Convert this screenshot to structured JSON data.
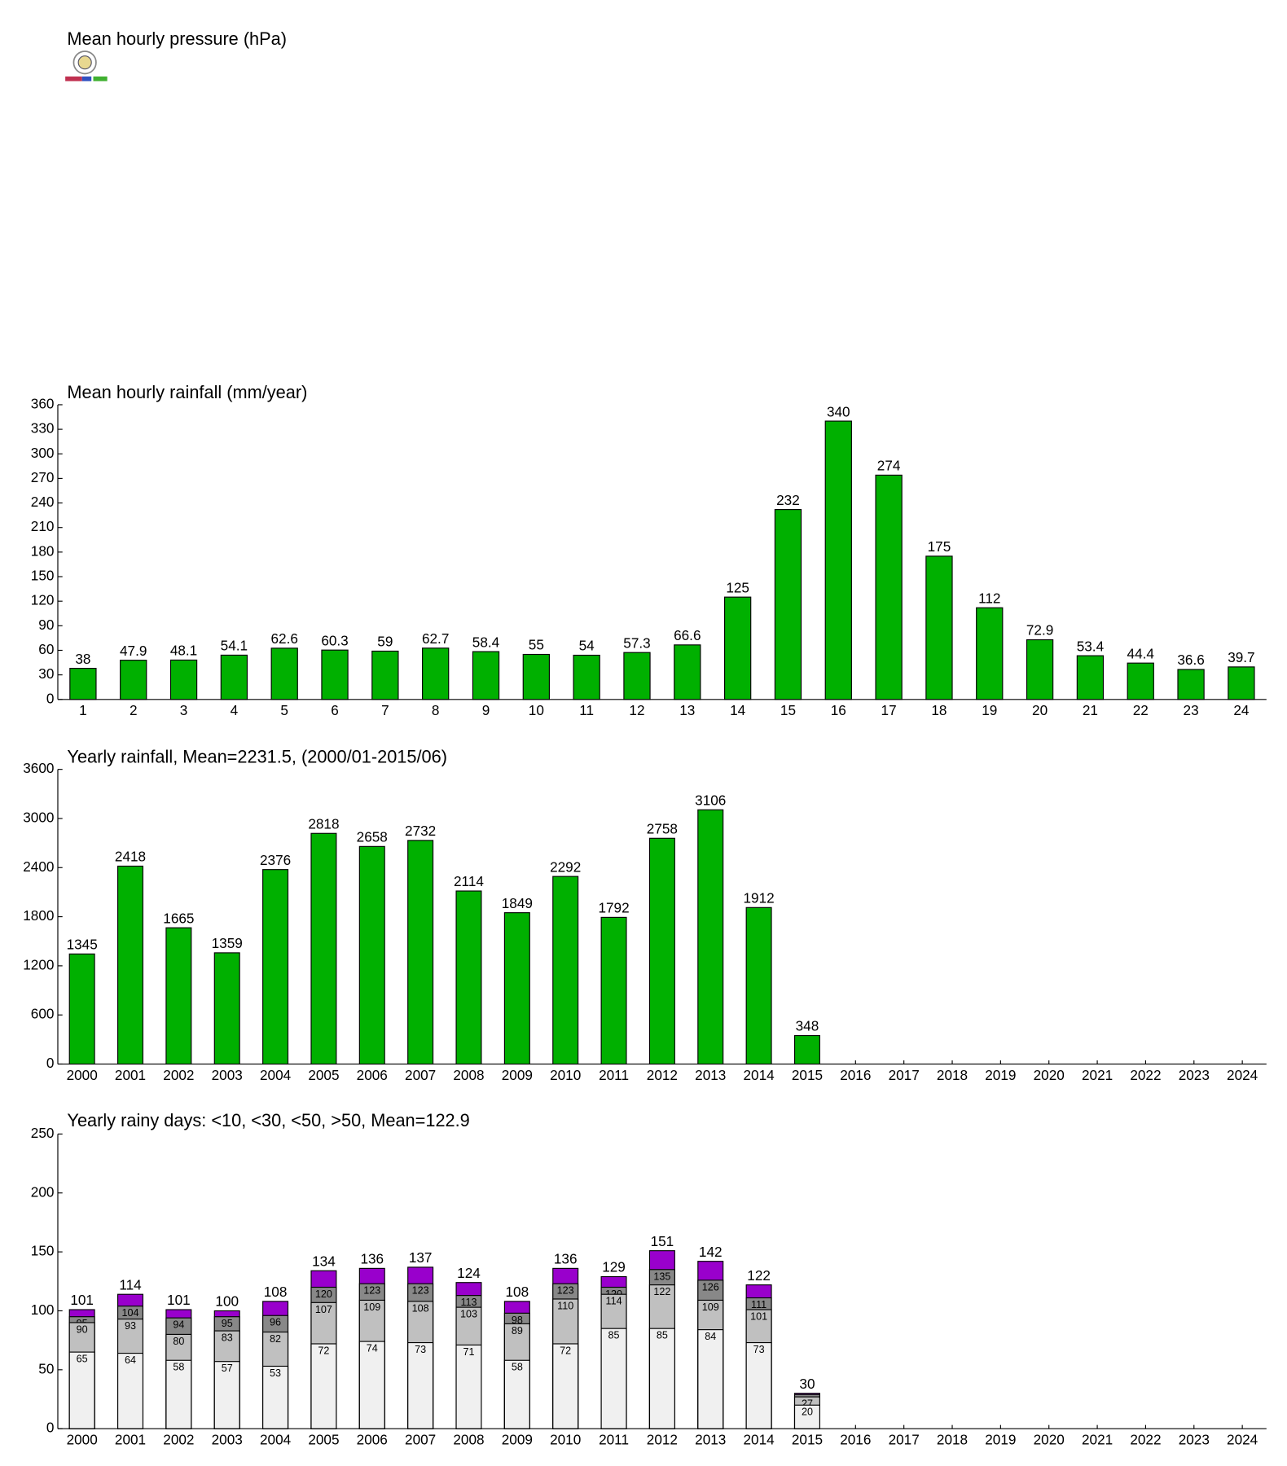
{
  "chart_data": [
    {
      "type": "empty",
      "title": "Mean hourly pressure (hPa)"
    },
    {
      "type": "bar",
      "title": "Mean hourly rainfall (mm/year)",
      "categories": [
        "1",
        "2",
        "3",
        "4",
        "5",
        "6",
        "7",
        "8",
        "9",
        "10",
        "11",
        "12",
        "13",
        "14",
        "15",
        "16",
        "17",
        "18",
        "19",
        "20",
        "21",
        "22",
        "23",
        "24"
      ],
      "values": [
        38,
        47.9,
        48.1,
        54.1,
        62.6,
        60.3,
        59,
        62.7,
        58.4,
        55,
        54,
        57.3,
        66.6,
        125,
        232,
        340,
        274,
        175,
        112,
        72.9,
        53.4,
        44.4,
        36.6,
        39.7
      ],
      "color": "#00b000",
      "ylim": [
        0,
        360
      ],
      "yticks": [
        0,
        30,
        60,
        90,
        120,
        150,
        180,
        210,
        240,
        270,
        300,
        330,
        360
      ]
    },
    {
      "type": "bar",
      "title": "Yearly rainfall, Mean=2231.5, (2000/01-2015/06)",
      "categories": [
        "2000",
        "2001",
        "2002",
        "2003",
        "2004",
        "2005",
        "2006",
        "2007",
        "2008",
        "2009",
        "2010",
        "2011",
        "2012",
        "2013",
        "2014",
        "2015",
        "2016",
        "2017",
        "2018",
        "2019",
        "2020",
        "2021",
        "2022",
        "2023",
        "2024"
      ],
      "values": [
        1345,
        2418,
        1665,
        1359,
        2376,
        2818,
        2658,
        2732,
        2114,
        1849,
        2292,
        1792,
        2758,
        3106,
        1912,
        348,
        null,
        null,
        null,
        null,
        null,
        null,
        null,
        null,
        null
      ],
      "color": "#00b000",
      "ylim": [
        0,
        3600
      ],
      "yticks": [
        0,
        600,
        1200,
        1800,
        2400,
        3000,
        3600
      ]
    },
    {
      "type": "overlap",
      "title": "Yearly rainy days: <10, <30, <50, >50, Mean=122.9",
      "categories": [
        "2000",
        "2001",
        "2002",
        "2003",
        "2004",
        "2005",
        "2006",
        "2007",
        "2008",
        "2009",
        "2010",
        "2011",
        "2012",
        "2013",
        "2014",
        "2015",
        "2016",
        "2017",
        "2018",
        "2019",
        "2020",
        "2021",
        "2022",
        "2023",
        "2024"
      ],
      "series": [
        {
          "color": "#9900cc",
          "values": [
            101,
            114,
            101,
            100,
            108,
            134,
            136,
            137,
            124,
            108,
            136,
            129,
            151,
            142,
            122,
            30,
            null,
            null,
            null,
            null,
            null,
            null,
            null,
            null,
            null
          ]
        },
        {
          "color": "#888888",
          "values": [
            95,
            104,
            94,
            95,
            96,
            120,
            123,
            123,
            113,
            98,
            123,
            120,
            135,
            126,
            111,
            29,
            null,
            null,
            null,
            null,
            null,
            null,
            null,
            null,
            null
          ]
        },
        {
          "color": "#c0c0c0",
          "values": [
            90,
            93,
            80,
            83,
            82,
            107,
            109,
            108,
            103,
            89,
            110,
            114,
            122,
            109,
            101,
            27,
            null,
            null,
            null,
            null,
            null,
            null,
            null,
            null,
            null
          ]
        },
        {
          "color": "#f0f0f0",
          "values": [
            65,
            64,
            58,
            57,
            53,
            72,
            74,
            73,
            71,
            58,
            72,
            85,
            85,
            84,
            73,
            20,
            null,
            null,
            null,
            null,
            null,
            null,
            null,
            null,
            null
          ]
        }
      ],
      "ylim": [
        0,
        250
      ],
      "yticks": [
        0,
        50,
        100,
        150,
        200,
        250
      ]
    }
  ]
}
